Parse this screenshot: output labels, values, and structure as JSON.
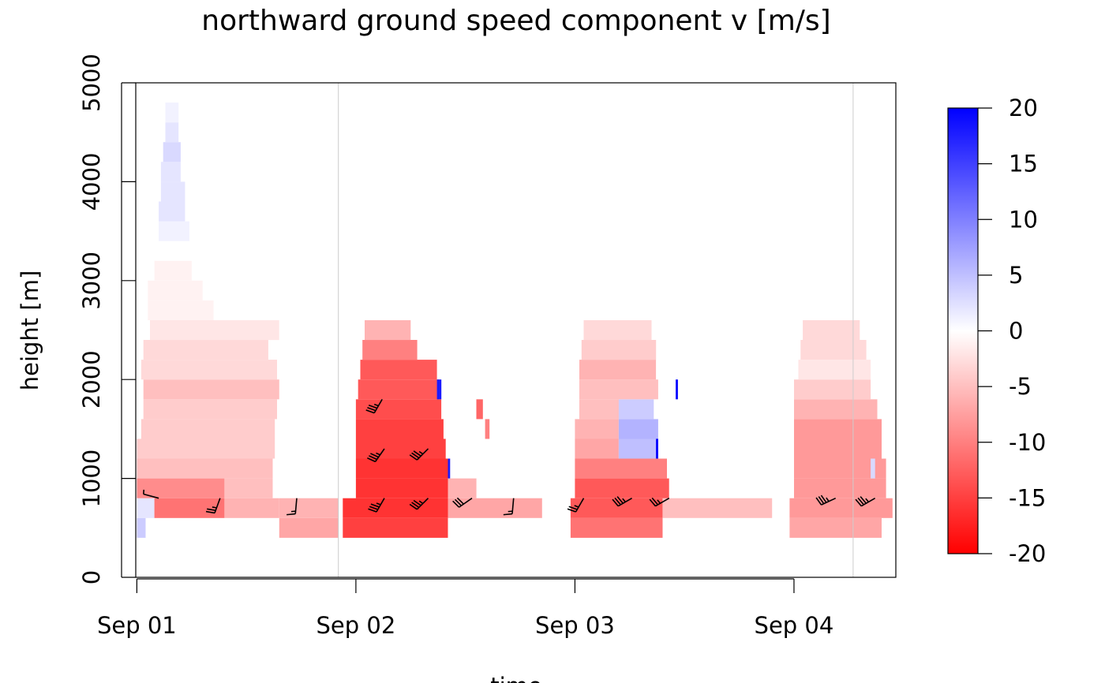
{
  "chart_data": {
    "type": "heatmap",
    "title": "northward ground speed component v [m/s]",
    "xlabel": "time",
    "ylabel": "height [m]",
    "x_ticks": [
      {
        "label": "Sep 01",
        "day": 0
      },
      {
        "label": "Sep 02",
        "day": 1
      },
      {
        "label": "Sep 03",
        "day": 2
      },
      {
        "label": "Sep 04",
        "day": 3
      }
    ],
    "xlim_days": [
      -0.005,
      3.465
    ],
    "y_ticks": [
      0,
      1000,
      2000,
      3000,
      4000,
      5000
    ],
    "ylim": [
      0,
      5000
    ],
    "vertical_reference_lines_days": [
      0.92,
      3.27
    ],
    "colorbar": {
      "range": [
        -20,
        20
      ],
      "ticks": [
        "20",
        "15",
        "10",
        "5",
        "0",
        "-5",
        "-10",
        "-15",
        "-20"
      ],
      "low_color": "#ff0000",
      "mid_color": "#ffffff",
      "high_color": "#0000ff"
    },
    "cell_height_m": 200,
    "cells": [
      {
        "t0": 0.0,
        "t1": 0.04,
        "h": 500,
        "v": 4
      },
      {
        "t0": 0.0,
        "t1": 0.08,
        "h": 700,
        "v": 2
      },
      {
        "t0": 0.08,
        "t1": 0.4,
        "h": 700,
        "v": -11
      },
      {
        "t0": 0.4,
        "t1": 0.65,
        "h": 700,
        "v": -6
      },
      {
        "t0": 0.65,
        "t1": 0.92,
        "h": 500,
        "v": -7
      },
      {
        "t0": 0.65,
        "t1": 0.92,
        "h": 700,
        "v": -6
      },
      {
        "t0": 0.0,
        "t1": 0.4,
        "h": 900,
        "v": -9
      },
      {
        "t0": 0.4,
        "t1": 0.62,
        "h": 900,
        "v": -5
      },
      {
        "t0": 0.0,
        "t1": 0.62,
        "h": 1100,
        "v": -5
      },
      {
        "t0": 0.0,
        "t1": 0.63,
        "h": 1300,
        "v": -4
      },
      {
        "t0": 0.02,
        "t1": 0.63,
        "h": 1500,
        "v": -4
      },
      {
        "t0": 0.03,
        "t1": 0.64,
        "h": 1700,
        "v": -4
      },
      {
        "t0": 0.03,
        "t1": 0.65,
        "h": 1900,
        "v": -5
      },
      {
        "t0": 0.02,
        "t1": 0.64,
        "h": 2100,
        "v": -3
      },
      {
        "t0": 0.03,
        "t1": 0.6,
        "h": 2300,
        "v": -3
      },
      {
        "t0": 0.06,
        "t1": 0.65,
        "h": 2500,
        "v": -2
      },
      {
        "t0": 0.05,
        "t1": 0.35,
        "h": 2700,
        "v": -1
      },
      {
        "t0": 0.05,
        "t1": 0.3,
        "h": 2900,
        "v": -1
      },
      {
        "t0": 0.08,
        "t1": 0.25,
        "h": 3100,
        "v": -1
      },
      {
        "t0": 0.09,
        "t1": 0.25,
        "h": 3300,
        "v": 0
      },
      {
        "t0": 0.1,
        "t1": 0.24,
        "h": 3500,
        "v": 1
      },
      {
        "t0": 0.1,
        "t1": 0.22,
        "h": 3700,
        "v": 2
      },
      {
        "t0": 0.11,
        "t1": 0.22,
        "h": 3900,
        "v": 2
      },
      {
        "t0": 0.11,
        "t1": 0.2,
        "h": 4100,
        "v": 2
      },
      {
        "t0": 0.12,
        "t1": 0.2,
        "h": 4300,
        "v": 3
      },
      {
        "t0": 0.13,
        "t1": 0.19,
        "h": 4500,
        "v": 2
      },
      {
        "t0": 0.13,
        "t1": 0.19,
        "h": 4700,
        "v": 1
      },
      {
        "t0": 0.94,
        "t1": 1.42,
        "h": 500,
        "v": -15
      },
      {
        "t0": 0.94,
        "t1": 1.42,
        "h": 700,
        "v": -16
      },
      {
        "t0": 1.42,
        "t1": 1.85,
        "h": 700,
        "v": -7
      },
      {
        "t0": 1.0,
        "t1": 1.42,
        "h": 900,
        "v": -16
      },
      {
        "t0": 1.42,
        "t1": 1.55,
        "h": 900,
        "v": -6
      },
      {
        "t0": 1.0,
        "t1": 1.42,
        "h": 1100,
        "v": -16
      },
      {
        "t0": 1.0,
        "t1": 1.41,
        "h": 1300,
        "v": -15
      },
      {
        "t0": 1.0,
        "t1": 1.4,
        "h": 1500,
        "v": -15
      },
      {
        "t0": 1.0,
        "t1": 1.39,
        "h": 1700,
        "v": -14
      },
      {
        "t0": 1.01,
        "t1": 1.38,
        "h": 1900,
        "v": -13
      },
      {
        "t0": 1.02,
        "t1": 1.37,
        "h": 2100,
        "v": -13
      },
      {
        "t0": 1.03,
        "t1": 1.28,
        "h": 2300,
        "v": -10
      },
      {
        "t0": 1.04,
        "t1": 1.25,
        "h": 2500,
        "v": -6
      },
      {
        "t0": 1.37,
        "t1": 1.39,
        "h": 1900,
        "v": 18
      },
      {
        "t0": 1.42,
        "t1": 1.43,
        "h": 1100,
        "v": 18
      },
      {
        "t0": 1.55,
        "t1": 1.58,
        "h": 1700,
        "v": -12
      },
      {
        "t0": 1.59,
        "t1": 1.61,
        "h": 1500,
        "v": -10
      },
      {
        "t0": 1.98,
        "t1": 2.4,
        "h": 500,
        "v": -11
      },
      {
        "t0": 1.98,
        "t1": 2.4,
        "h": 700,
        "v": -13
      },
      {
        "t0": 2.4,
        "t1": 2.9,
        "h": 700,
        "v": -5
      },
      {
        "t0": 2.0,
        "t1": 2.43,
        "h": 900,
        "v": -13
      },
      {
        "t0": 2.0,
        "t1": 2.42,
        "h": 1100,
        "v": -10
      },
      {
        "t0": 2.0,
        "t1": 2.2,
        "h": 1300,
        "v": -7
      },
      {
        "t0": 2.2,
        "t1": 2.38,
        "h": 1300,
        "v": 5
      },
      {
        "t0": 2.0,
        "t1": 2.2,
        "h": 1500,
        "v": -6
      },
      {
        "t0": 2.2,
        "t1": 2.38,
        "h": 1500,
        "v": 6
      },
      {
        "t0": 2.02,
        "t1": 2.2,
        "h": 1700,
        "v": -5
      },
      {
        "t0": 2.2,
        "t1": 2.36,
        "h": 1700,
        "v": 4
      },
      {
        "t0": 2.02,
        "t1": 2.38,
        "h": 1900,
        "v": -5
      },
      {
        "t0": 2.02,
        "t1": 2.37,
        "h": 2100,
        "v": -6
      },
      {
        "t0": 2.03,
        "t1": 2.37,
        "h": 2300,
        "v": -4
      },
      {
        "t0": 2.04,
        "t1": 2.35,
        "h": 2500,
        "v": -3
      },
      {
        "t0": 2.37,
        "t1": 2.38,
        "h": 1300,
        "v": 20
      },
      {
        "t0": 2.46,
        "t1": 2.47,
        "h": 1900,
        "v": 20
      },
      {
        "t0": 2.98,
        "t1": 3.4,
        "h": 500,
        "v": -7
      },
      {
        "t0": 2.98,
        "t1": 3.45,
        "h": 700,
        "v": -8
      },
      {
        "t0": 3.0,
        "t1": 3.42,
        "h": 900,
        "v": -8
      },
      {
        "t0": 3.0,
        "t1": 3.42,
        "h": 1100,
        "v": -8
      },
      {
        "t0": 3.0,
        "t1": 3.4,
        "h": 1300,
        "v": -8
      },
      {
        "t0": 3.0,
        "t1": 3.4,
        "h": 1500,
        "v": -8
      },
      {
        "t0": 3.0,
        "t1": 3.38,
        "h": 1700,
        "v": -6
      },
      {
        "t0": 3.0,
        "t1": 3.35,
        "h": 1900,
        "v": -4
      },
      {
        "t0": 3.02,
        "t1": 3.35,
        "h": 2100,
        "v": -2
      },
      {
        "t0": 3.03,
        "t1": 3.33,
        "h": 2300,
        "v": -3
      },
      {
        "t0": 3.04,
        "t1": 3.3,
        "h": 2500,
        "v": -3
      },
      {
        "t0": 3.35,
        "t1": 3.37,
        "h": 1100,
        "v": 3
      }
    ],
    "wind_barbs": [
      {
        "t": 0.1,
        "h": 800,
        "dir_deg": 285,
        "speed_kt": 5
      },
      {
        "t": 0.38,
        "h": 800,
        "dir_deg": 200,
        "speed_kt": 25
      },
      {
        "t": 0.73,
        "h": 800,
        "dir_deg": 185,
        "speed_kt": 15
      },
      {
        "t": 1.13,
        "h": 800,
        "dir_deg": 210,
        "speed_kt": 35
      },
      {
        "t": 1.33,
        "h": 800,
        "dir_deg": 225,
        "speed_kt": 35
      },
      {
        "t": 1.53,
        "h": 800,
        "dir_deg": 235,
        "speed_kt": 30
      },
      {
        "t": 1.72,
        "h": 800,
        "dir_deg": 185,
        "speed_kt": 15
      },
      {
        "t": 2.04,
        "h": 800,
        "dir_deg": 210,
        "speed_kt": 25
      },
      {
        "t": 2.26,
        "h": 800,
        "dir_deg": 240,
        "speed_kt": 35
      },
      {
        "t": 2.43,
        "h": 800,
        "dir_deg": 240,
        "speed_kt": 25
      },
      {
        "t": 3.19,
        "h": 800,
        "dir_deg": 245,
        "speed_kt": 35
      },
      {
        "t": 3.37,
        "h": 800,
        "dir_deg": 240,
        "speed_kt": 35
      },
      {
        "t": 1.13,
        "h": 1300,
        "dir_deg": 215,
        "speed_kt": 35
      },
      {
        "t": 1.33,
        "h": 1300,
        "dir_deg": 225,
        "speed_kt": 35
      },
      {
        "t": 1.12,
        "h": 1800,
        "dir_deg": 210,
        "speed_kt": 35
      }
    ]
  }
}
